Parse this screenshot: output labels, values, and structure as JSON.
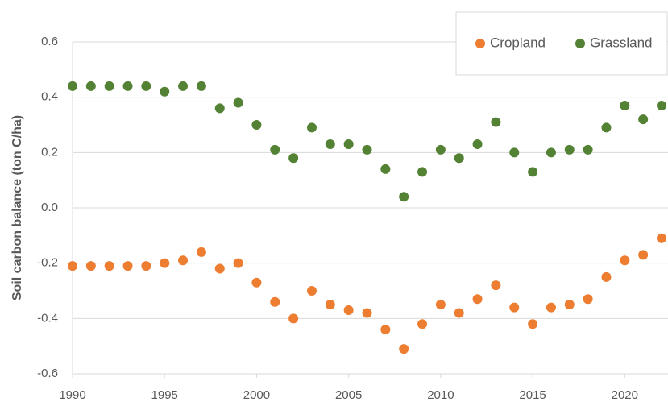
{
  "chart_data": {
    "type": "scatter",
    "y_label": "Soil carbon balance (ton C/ha)",
    "xlim": [
      1990,
      2022
    ],
    "xticks": [
      1990,
      1995,
      2000,
      2005,
      2010,
      2015,
      2020
    ],
    "ylim": [
      -0.6,
      0.6
    ],
    "yticks": [
      -0.6,
      -0.4,
      -0.2,
      {
        "value": 0,
        "label": "0.0"
      },
      0.2,
      0.4,
      0.6
    ],
    "grid": true,
    "legend": "top-right",
    "x": [
      1990,
      1991,
      1992,
      1993,
      1994,
      1995,
      1996,
      1997,
      1998,
      1999,
      2000,
      2001,
      2002,
      2003,
      2004,
      2005,
      2006,
      2007,
      2008,
      2009,
      2010,
      2011,
      2012,
      2013,
      2014,
      2015,
      2016,
      2017,
      2018,
      2019,
      2020,
      2021,
      2022
    ],
    "series": [
      {
        "name": "Cropland",
        "color": "#ed7d31",
        "values": [
          -0.21,
          -0.21,
          -0.21,
          -0.21,
          -0.21,
          -0.2,
          -0.19,
          -0.16,
          -0.22,
          -0.2,
          -0.27,
          -0.34,
          -0.4,
          -0.3,
          -0.35,
          -0.37,
          -0.38,
          -0.44,
          -0.51,
          -0.42,
          -0.35,
          -0.38,
          -0.33,
          -0.28,
          -0.36,
          -0.42,
          -0.36,
          -0.35,
          -0.33,
          -0.25,
          -0.19,
          -0.17,
          -0.11
        ]
      },
      {
        "name": "Grassland",
        "color": "#548235",
        "values": [
          0.44,
          0.44,
          0.44,
          0.44,
          0.44,
          0.42,
          0.44,
          0.44,
          0.36,
          0.38,
          0.3,
          0.21,
          0.18,
          0.29,
          0.23,
          0.23,
          0.21,
          0.14,
          0.04,
          0.13,
          0.21,
          0.18,
          0.23,
          0.31,
          0.2,
          0.13,
          0.2,
          0.21,
          0.21,
          0.29,
          0.37,
          0.32,
          0.37
        ]
      }
    ]
  }
}
